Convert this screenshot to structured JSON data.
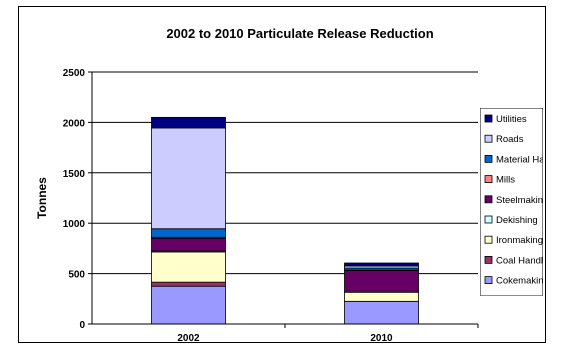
{
  "chart_data": {
    "type": "bar",
    "stacked": true,
    "title": "2002 to 2010 Particulate Release Reduction",
    "xlabel": "",
    "ylabel": "Tonnes",
    "ylim": [
      0,
      2500
    ],
    "yticks": [
      "0",
      "500",
      "1000",
      "1500",
      "2000",
      "2500"
    ],
    "categories": [
      "2002",
      "2010"
    ],
    "grid": true,
    "legend_position": "right",
    "series": [
      {
        "name": "Cokemaking",
        "color": "#9999FF",
        "values": [
          375,
          225
        ]
      },
      {
        "name": "Coal Handling",
        "color": "#993366",
        "values": [
          40,
          0
        ]
      },
      {
        "name": "Ironmaking",
        "color": "#FFFFCC",
        "values": [
          300,
          90
        ]
      },
      {
        "name": "Dekishing",
        "color": "#CCFFFF",
        "values": [
          10,
          10
        ]
      },
      {
        "name": "Steelmaking",
        "color": "#660066",
        "values": [
          125,
          205
        ]
      },
      {
        "name": "Mills",
        "color": "#FF8080",
        "values": [
          10,
          5
        ]
      },
      {
        "name": "Material Handli",
        "color": "#0066CC",
        "values": [
          85,
          20
        ]
      },
      {
        "name": "Roads",
        "color": "#CCCCFF",
        "values": [
          1000,
          20
        ]
      },
      {
        "name": "Utilities",
        "color": "#000080",
        "values": [
          105,
          30
        ]
      }
    ]
  }
}
